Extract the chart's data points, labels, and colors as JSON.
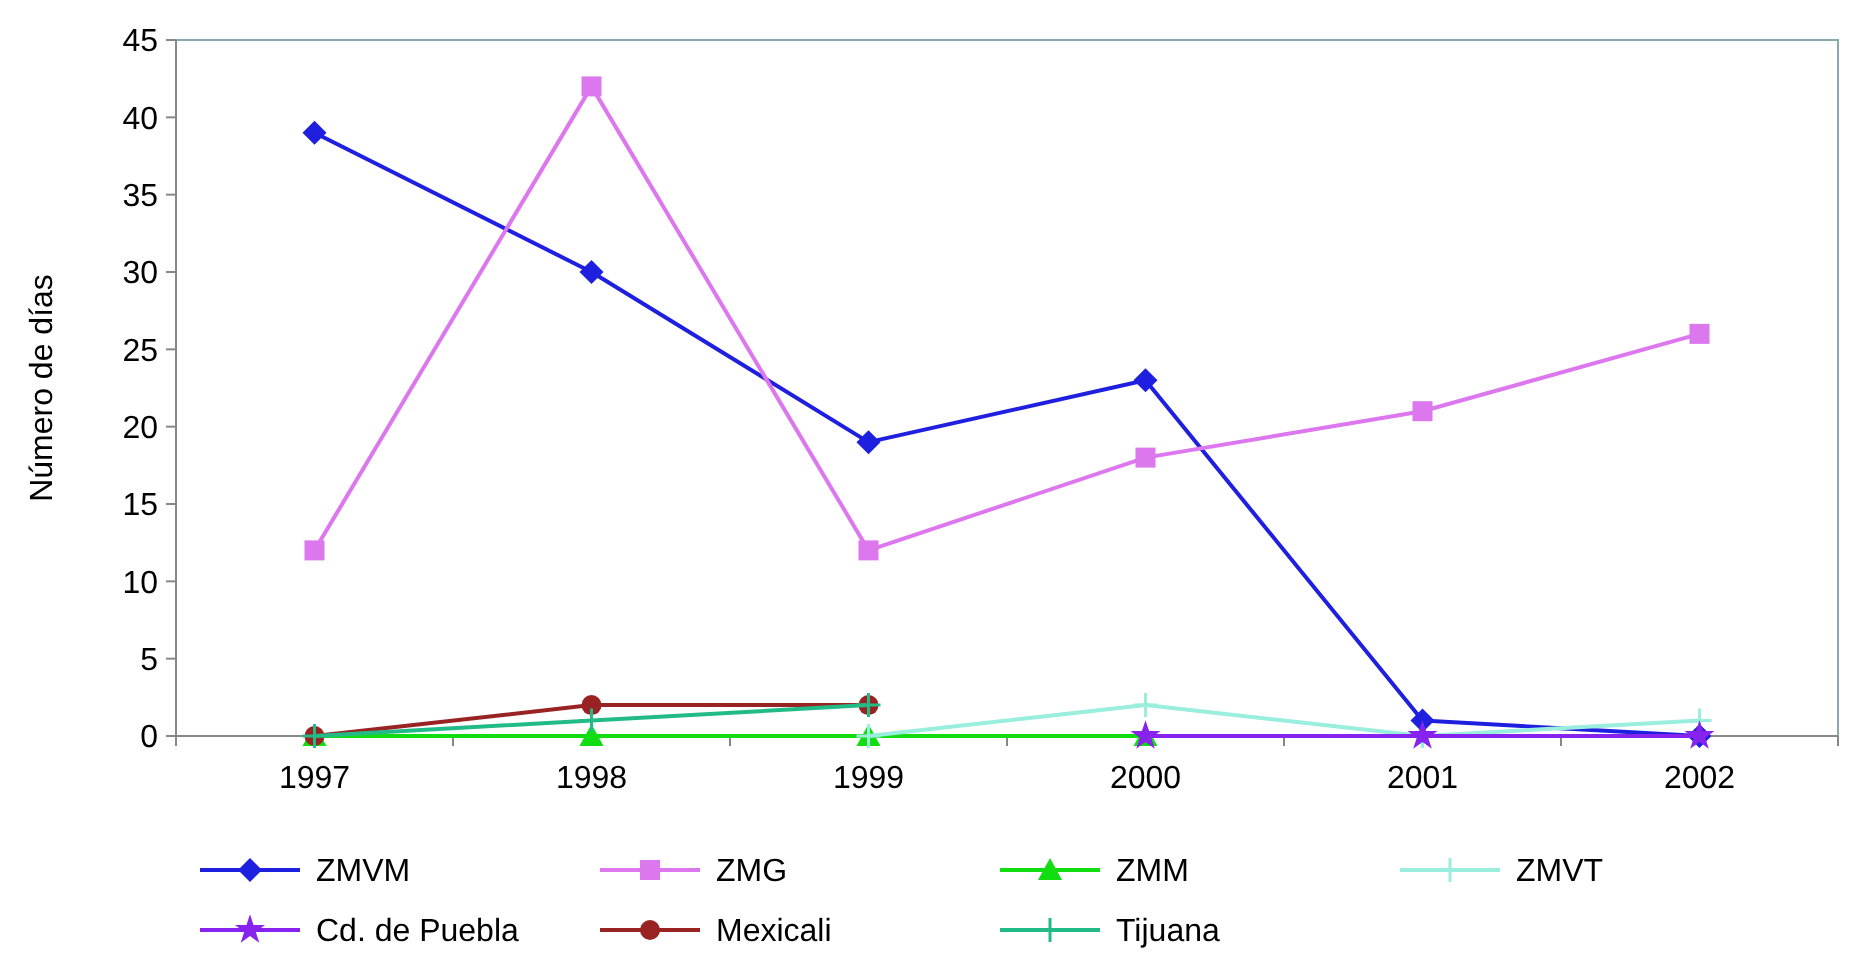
{
  "chart_data": {
    "type": "line",
    "ylabel": "Número de días",
    "categories": [
      "1997",
      "1998",
      "1999",
      "2000",
      "2001",
      "2002"
    ],
    "ylim": [
      0,
      45
    ],
    "yticks": [
      0,
      5,
      10,
      15,
      20,
      25,
      30,
      35,
      40,
      45
    ],
    "grid": false,
    "legend": "bottom",
    "series": [
      {
        "name": "ZMVM",
        "color": "#1f1fe0",
        "marker": "diamond",
        "values": [
          39,
          30,
          19,
          23,
          1,
          0
        ]
      },
      {
        "name": "ZMG",
        "color": "#dd77ee",
        "marker": "square",
        "values": [
          12,
          42,
          12,
          18,
          21,
          26
        ]
      },
      {
        "name": "ZMM",
        "color": "#11dd11",
        "marker": "triangle",
        "values": [
          0,
          0,
          0,
          0,
          null,
          null
        ]
      },
      {
        "name": "ZMVT",
        "color": "#99eedd",
        "marker": "cross",
        "values": [
          null,
          null,
          0,
          2,
          0,
          1
        ]
      },
      {
        "name": "Cd. de Puebla",
        "color": "#8822ee",
        "marker": "star",
        "values": [
          null,
          null,
          null,
          0,
          0,
          0
        ]
      },
      {
        "name": "Mexicali",
        "color": "#992222",
        "marker": "circle",
        "values": [
          0,
          2,
          2,
          null,
          null,
          null
        ]
      },
      {
        "name": "Tijuana",
        "color": "#22bb88",
        "marker": "cross",
        "values": [
          0,
          1,
          2,
          null,
          null,
          null
        ]
      }
    ]
  }
}
